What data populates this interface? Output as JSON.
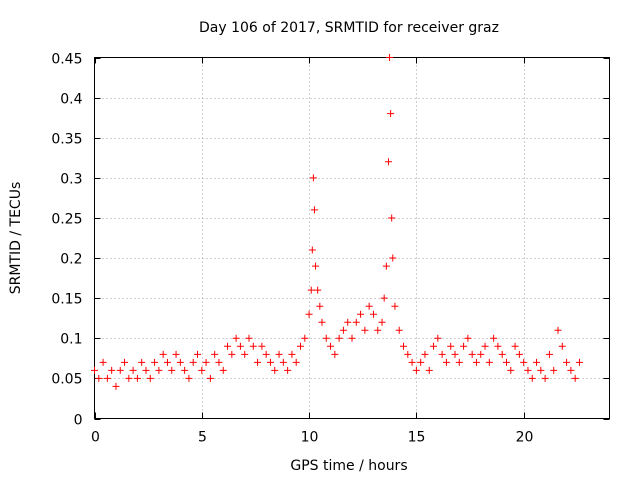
{
  "chart_data": {
    "type": "scatter",
    "title": "Day 106 of 2017, SRMTID for receiver graz",
    "xlabel": "GPS time / hours",
    "ylabel": "SRMTID / TECUs",
    "xlim": [
      0,
      24
    ],
    "ylim": [
      0,
      0.45
    ],
    "xticks": [
      0,
      5,
      10,
      15,
      20
    ],
    "xtick_labels": [
      "0",
      "5",
      "10",
      "15",
      "20"
    ],
    "yticks": [
      0,
      0.05,
      0.1,
      0.15,
      0.2,
      0.25,
      0.3,
      0.35,
      0.4,
      0.45
    ],
    "ytick_labels": [
      "0",
      "0.05",
      "0.1",
      "0.15",
      "0.2",
      "0.25",
      "0.3",
      "0.35",
      "0.4",
      "0.45"
    ],
    "grid": true,
    "marker": "+",
    "marker_color": "#ff0000",
    "series": [
      {
        "name": "SRMTID",
        "x": [
          0.0,
          0.2,
          0.4,
          0.6,
          0.8,
          1.0,
          1.2,
          1.4,
          1.6,
          1.8,
          2.0,
          2.2,
          2.4,
          2.6,
          2.8,
          3.0,
          3.2,
          3.4,
          3.6,
          3.8,
          4.0,
          4.2,
          4.4,
          4.6,
          4.8,
          5.0,
          5.2,
          5.4,
          5.6,
          5.8,
          6.0,
          6.2,
          6.4,
          6.6,
          6.8,
          7.0,
          7.2,
          7.4,
          7.6,
          7.8,
          8.0,
          8.2,
          8.4,
          8.6,
          8.8,
          9.0,
          9.2,
          9.4,
          9.6,
          9.8,
          10.0,
          10.1,
          10.15,
          10.2,
          10.25,
          10.3,
          10.4,
          10.5,
          10.6,
          10.8,
          11.0,
          11.2,
          11.4,
          11.6,
          11.8,
          12.0,
          12.2,
          12.4,
          12.6,
          12.8,
          13.0,
          13.2,
          13.4,
          13.5,
          13.6,
          13.7,
          13.75,
          13.8,
          13.85,
          13.9,
          14.0,
          14.2,
          14.4,
          14.6,
          14.8,
          15.0,
          15.2,
          15.4,
          15.6,
          15.8,
          16.0,
          16.2,
          16.4,
          16.6,
          16.8,
          17.0,
          17.2,
          17.4,
          17.6,
          17.8,
          18.0,
          18.2,
          18.4,
          18.6,
          18.8,
          19.0,
          19.2,
          19.4,
          19.6,
          19.8,
          20.0,
          20.2,
          20.4,
          20.6,
          20.8,
          21.0,
          21.2,
          21.4,
          21.6,
          21.8,
          22.0,
          22.2,
          22.4,
          22.6
        ],
        "y": [
          0.06,
          0.05,
          0.07,
          0.05,
          0.06,
          0.04,
          0.06,
          0.07,
          0.05,
          0.06,
          0.05,
          0.07,
          0.06,
          0.05,
          0.07,
          0.06,
          0.08,
          0.07,
          0.06,
          0.08,
          0.07,
          0.06,
          0.05,
          0.07,
          0.08,
          0.06,
          0.07,
          0.05,
          0.08,
          0.07,
          0.06,
          0.09,
          0.08,
          0.1,
          0.09,
          0.08,
          0.1,
          0.09,
          0.07,
          0.09,
          0.08,
          0.07,
          0.06,
          0.08,
          0.07,
          0.06,
          0.08,
          0.07,
          0.09,
          0.1,
          0.13,
          0.16,
          0.21,
          0.3,
          0.26,
          0.19,
          0.16,
          0.14,
          0.12,
          0.1,
          0.09,
          0.08,
          0.1,
          0.11,
          0.12,
          0.1,
          0.12,
          0.13,
          0.11,
          0.14,
          0.13,
          0.11,
          0.12,
          0.15,
          0.19,
          0.32,
          0.45,
          0.38,
          0.25,
          0.2,
          0.14,
          0.11,
          0.09,
          0.08,
          0.07,
          0.06,
          0.07,
          0.08,
          0.06,
          0.09,
          0.1,
          0.08,
          0.07,
          0.09,
          0.08,
          0.07,
          0.09,
          0.1,
          0.08,
          0.07,
          0.08,
          0.09,
          0.07,
          0.1,
          0.09,
          0.08,
          0.07,
          0.06,
          0.09,
          0.08,
          0.07,
          0.06,
          0.05,
          0.07,
          0.06,
          0.05,
          0.08,
          0.06,
          0.11,
          0.09,
          0.07,
          0.06,
          0.05,
          0.07
        ]
      }
    ]
  }
}
